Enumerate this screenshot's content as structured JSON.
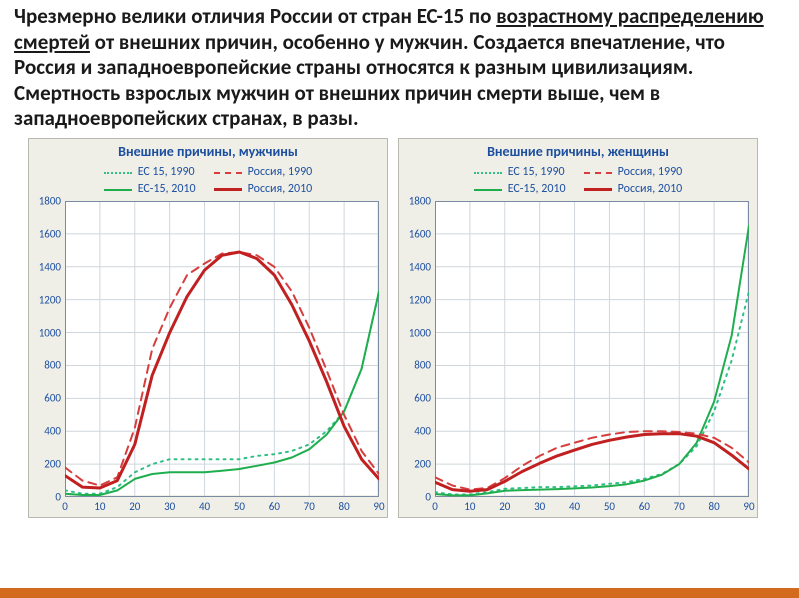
{
  "heading": {
    "part1": "Чрезмерно велики  отличия России от стран ЕС-15 по ",
    "part2_underline": "возрастному распределению смертей",
    "part3": " от внешних причин, особенно у мужчин. Создается впечатление, что Россия и западноевропейские страны относятся к разным цивилизациям. Смертность взрослых мужчин от внешних причин смерти выше, чем в западноевропейских странах, в разы."
  },
  "colors": {
    "ec_1990": "#2fbf85",
    "ec_2010": "#1fae4e",
    "ru_1990": "#d63d3d",
    "ru_2010": "#c02020",
    "axis_text": "#1d4fa0",
    "grid": "#cfd6dc",
    "panel_bg": "#efefe7",
    "plot_bg": "#ffffff",
    "bottom_bar": "#d36a1e"
  },
  "series_defs": [
    {
      "key": "ec_1990",
      "label": "ЕС 15, 1990",
      "color": "#2fbf85",
      "dash": "dotted",
      "width": 2
    },
    {
      "key": "ec_2010",
      "label": "ЕС-15, 2010",
      "color": "#1fae4e",
      "dash": "solid",
      "width": 2
    },
    {
      "key": "ru_1990",
      "label": "Россия, 1990",
      "color": "#d63d3d",
      "dash": "dashed",
      "width": 2
    },
    {
      "key": "ru_2010",
      "label": "Россия, 2010",
      "color": "#c02020",
      "dash": "solid",
      "width": 3
    }
  ],
  "x_values": [
    0,
    5,
    10,
    15,
    20,
    25,
    30,
    35,
    40,
    45,
    50,
    55,
    60,
    65,
    70,
    75,
    80,
    85,
    90
  ],
  "charts": [
    {
      "title": "Внешние причины, мужчины",
      "legend_right_key": "ec_2010_label",
      "ec_2010_label": "ЕС-15, 2010",
      "ylim": [
        0,
        1800
      ],
      "ytick_step": 200,
      "xlim": [
        0,
        90
      ],
      "xtick_step": 10,
      "series": {
        "ec_1990": [
          40,
          20,
          20,
          60,
          150,
          200,
          230,
          230,
          230,
          230,
          230,
          250,
          260,
          280,
          320,
          400,
          520,
          780,
          1250
        ],
        "ec_2010": [
          20,
          12,
          12,
          40,
          110,
          140,
          150,
          150,
          150,
          160,
          170,
          190,
          210,
          240,
          290,
          380,
          520,
          780,
          1250
        ],
        "ru_1990": [
          180,
          100,
          70,
          120,
          420,
          900,
          1150,
          1350,
          1420,
          1480,
          1490,
          1470,
          1400,
          1250,
          1030,
          770,
          500,
          280,
          140
        ],
        "ru_2010": [
          130,
          60,
          55,
          100,
          320,
          740,
          1000,
          1220,
          1380,
          1470,
          1490,
          1450,
          1350,
          1170,
          950,
          700,
          430,
          230,
          110
        ]
      }
    },
    {
      "title": "Внешние причины, женщины",
      "legend_right_key": "ec_2010_label",
      "ec_2010_label": "ЕС-15, 2010",
      "ylim": [
        0,
        1800
      ],
      "ytick_step": 200,
      "xlim": [
        0,
        90
      ],
      "xtick_step": 10,
      "series": {
        "ec_1990": [
          30,
          15,
          15,
          30,
          50,
          55,
          60,
          60,
          65,
          70,
          80,
          90,
          110,
          140,
          200,
          310,
          520,
          830,
          1250
        ],
        "ec_2010": [
          18,
          10,
          10,
          22,
          38,
          42,
          45,
          48,
          52,
          58,
          66,
          78,
          100,
          135,
          200,
          330,
          580,
          980,
          1650
        ],
        "ru_1990": [
          120,
          70,
          45,
          55,
          115,
          190,
          250,
          300,
          330,
          360,
          380,
          395,
          400,
          400,
          395,
          385,
          360,
          300,
          210
        ],
        "ru_2010": [
          90,
          45,
          35,
          45,
          95,
          155,
          205,
          250,
          285,
          320,
          345,
          365,
          380,
          385,
          385,
          370,
          330,
          255,
          170
        ]
      }
    }
  ]
}
